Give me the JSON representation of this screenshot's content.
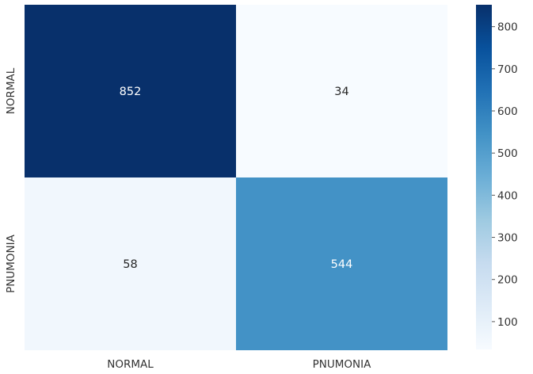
{
  "chart_data": {
    "type": "heatmap",
    "title": "",
    "xlabel": "",
    "ylabel": "",
    "x_categories": [
      "NORMAL",
      "PNUMONIA"
    ],
    "y_categories": [
      "NORMAL",
      "PNUMONIA"
    ],
    "values": [
      [
        852,
        34
      ],
      [
        58,
        544
      ]
    ],
    "colormap": "Blues",
    "colorbar": {
      "range": [
        34,
        852
      ],
      "ticks": [
        "100",
        "200",
        "300",
        "400",
        "500",
        "600",
        "700",
        "800"
      ]
    }
  }
}
